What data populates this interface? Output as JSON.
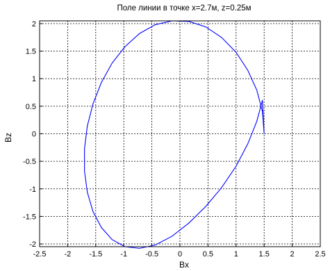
{
  "chart_data": {
    "type": "line",
    "title": "Поле линии в точке x=2.7м,  z=0.25м",
    "xlabel": "Bx",
    "ylabel": "Bz",
    "xlim": [
      -2.5,
      2.5
    ],
    "ylim": [
      -2.05,
      2.05
    ],
    "xticks": [
      "-2.5",
      "-2",
      "-1.5",
      "-1",
      "-0.5",
      "0",
      "0.5",
      "1",
      "1.5",
      "2",
      "2.5"
    ],
    "yticks": [
      "-2",
      "-1.5",
      "-1",
      "-0.5",
      "0",
      "0.5",
      "1",
      "1.5",
      "2"
    ],
    "grid": true,
    "line_color": "#0000ff",
    "series": [
      {
        "x": [
          1.5,
          1.47,
          1.37,
          1.21,
          1.0,
          0.74,
          0.46,
          0.16,
          -0.14,
          -0.44,
          -0.72,
          -0.98,
          -1.21,
          -1.4,
          -1.55,
          -1.65,
          -1.7,
          -1.7,
          -1.65,
          -1.55,
          -1.4,
          -1.21,
          -0.98,
          -0.72,
          -0.44,
          -0.14,
          0.16,
          0.46,
          0.74,
          1.0,
          1.21,
          1.37,
          1.47,
          1.5
        ],
        "y": [
          0.0,
          0.4,
          0.79,
          1.15,
          1.48,
          1.75,
          1.94,
          2.04,
          2.05,
          1.98,
          1.82,
          1.58,
          1.28,
          0.93,
          0.54,
          0.14,
          -0.27,
          -0.68,
          -1.06,
          -1.41,
          -1.7,
          -1.92,
          -2.05,
          -2.08,
          -2.02,
          -1.86,
          -1.62,
          -1.32,
          -0.98,
          -0.59,
          -0.18,
          0.23,
          0.61,
          0.0
        ]
      }
    ]
  }
}
